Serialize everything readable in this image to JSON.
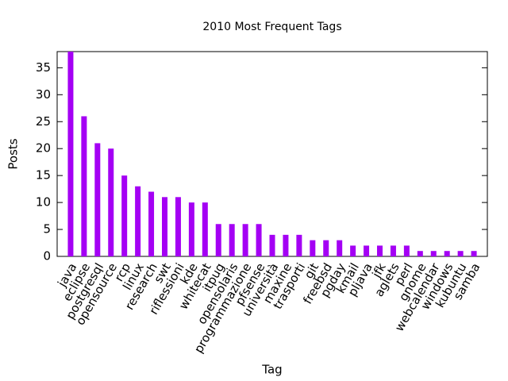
{
  "chart_data": {
    "type": "bar",
    "title": "2010 Most Frequent Tags",
    "xlabel": "Tag",
    "ylabel": "Posts",
    "categories": [
      "java",
      "eclipse",
      "postgresql",
      "opensource",
      "rcp",
      "linux",
      "research",
      "swt",
      "riflessioni",
      "kde",
      "whitecat",
      "itpug",
      "opensolaris",
      "programmazione",
      "pfsense",
      "università",
      "maxine",
      "trasporti",
      "git",
      "freebsd",
      "pgday",
      "kmail",
      "pljava",
      "jfk",
      "aglets",
      "perl",
      "gnome",
      "webcalendar",
      "windows",
      "kubuntu",
      "samba"
    ],
    "values": [
      38,
      26,
      21,
      20,
      15,
      13,
      12,
      11,
      11,
      10,
      10,
      6,
      6,
      6,
      6,
      4,
      4,
      4,
      3,
      3,
      3,
      2,
      2,
      2,
      2,
      2,
      1,
      1,
      1,
      1,
      1
    ],
    "color": "#a400f4",
    "ylim": [
      0,
      38
    ],
    "yticks": [
      0,
      5,
      10,
      15,
      20,
      25,
      30,
      35
    ],
    "grid": false
  }
}
